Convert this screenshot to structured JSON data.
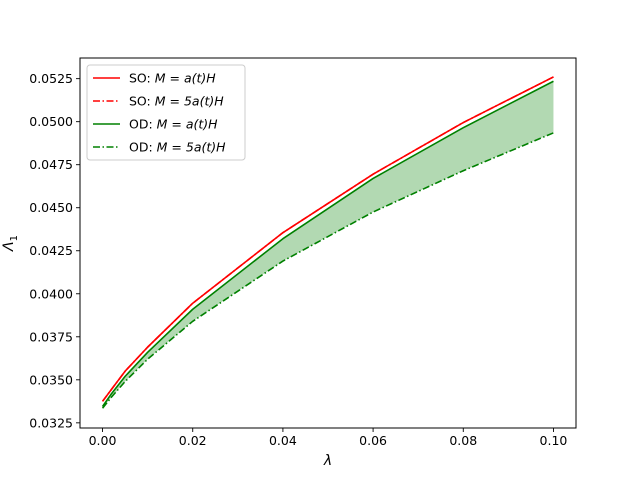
{
  "chart_data": {
    "type": "line",
    "xlabel": "λ",
    "ylabel": "Λ",
    "ylabel_sub": "1",
    "xlim": [
      -0.005,
      0.105
    ],
    "ylim": [
      0.0322,
      0.0537
    ],
    "x_ticks": [
      0.0,
      0.02,
      0.04,
      0.06,
      0.08,
      0.1
    ],
    "x_tick_labels": [
      "0.00",
      "0.02",
      "0.04",
      "0.06",
      "0.08",
      "0.10"
    ],
    "y_ticks": [
      0.0325,
      0.035,
      0.0375,
      0.04,
      0.0425,
      0.045,
      0.0475,
      0.05,
      0.0525
    ],
    "y_tick_labels": [
      "0.0325",
      "0.0350",
      "0.0375",
      "0.0400",
      "0.0425",
      "0.0450",
      "0.0475",
      "0.0500",
      "0.0525"
    ],
    "grid": false,
    "legend_position": "top-left",
    "x": [
      0.0,
      0.002,
      0.005,
      0.01,
      0.02,
      0.04,
      0.06,
      0.08,
      0.1
    ],
    "series": [
      {
        "name": "SO: M = a(t)H",
        "legend_prefix": "SO: ",
        "legend_math": "M = a(t)H",
        "color": "#ff0000",
        "dash": "solid",
        "values": [
          0.03375,
          0.03445,
          0.0355,
          0.0369,
          0.03945,
          0.04355,
          0.04695,
          0.04995,
          0.0526
        ]
      },
      {
        "name": "SO: M = 5a(t)H",
        "legend_prefix": "SO: ",
        "legend_math": "M = 5a(t)H",
        "color": "#ff0000",
        "dash": "dashdot",
        "values": [
          0.03375,
          0.03445,
          0.0355,
          0.0369,
          0.03945,
          0.04355,
          0.04695,
          0.04995,
          0.0526
        ]
      },
      {
        "name": "OD: M = a(t)H",
        "legend_prefix": "OD: ",
        "legend_math": "M = a(t)H",
        "color": "#008000",
        "dash": "solid",
        "values": [
          0.03345,
          0.0342,
          0.0352,
          0.0366,
          0.0391,
          0.0432,
          0.0467,
          0.04965,
          0.05235
        ]
      },
      {
        "name": "OD: M = 5a(t)H",
        "legend_prefix": "OD: ",
        "legend_math": "M = 5a(t)H",
        "color": "#008000",
        "dash": "dashdot",
        "values": [
          0.03335,
          0.034,
          0.0349,
          0.0362,
          0.0384,
          0.0419,
          0.04475,
          0.04715,
          0.04935
        ]
      }
    ],
    "fill_between": {
      "upper_series": 2,
      "lower_series": 3,
      "color": "#008000",
      "alpha": 0.3
    }
  }
}
